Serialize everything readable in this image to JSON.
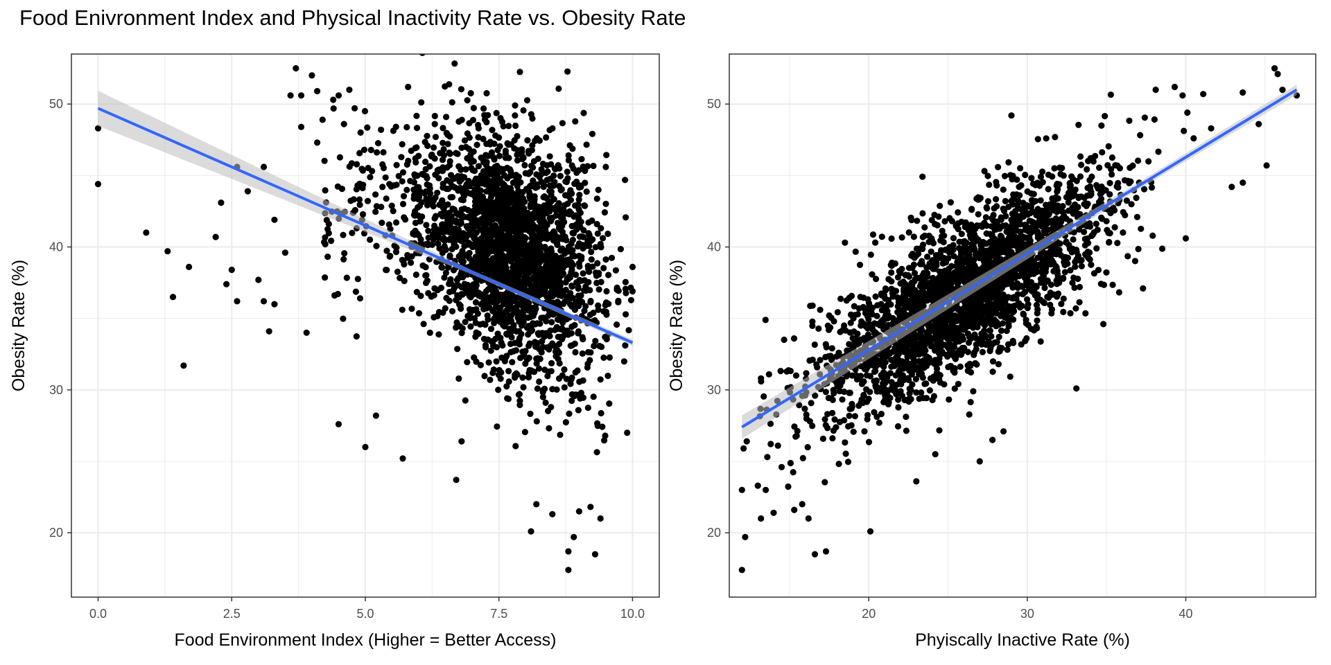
{
  "title": "Food Enivronment Index and Physical Inactivity Rate vs. Obesity Rate",
  "colors": {
    "points": "#000000",
    "trend": "#3366FF",
    "ribbon": "#BEBEBE",
    "grid": "#EBEBEB",
    "panel_border": "#333333",
    "tick_text": "#4D4D4D"
  },
  "chart_data": [
    {
      "type": "scatter",
      "title": "",
      "xlabel": "Food Environment Index (Higher = Better Access)",
      "ylabel": "Obesity Rate (%)",
      "xlim": [
        -0.5,
        10.5
      ],
      "ylim": [
        15.5,
        53.5
      ],
      "xticks": [
        0,
        2.5,
        5,
        7.5,
        10
      ],
      "xtick_labels": [
        "0.0",
        "2.5",
        "5.0",
        "7.5",
        "10.0"
      ],
      "yticks": [
        20,
        30,
        40,
        50
      ],
      "ytick_labels": [
        "20",
        "30",
        "40",
        "50"
      ],
      "grid": true,
      "trend": {
        "method": "linear",
        "x": [
          0,
          10
        ],
        "y": [
          49.7,
          33.3
        ],
        "ci_halfwidth": [
          0.9,
          0.25
        ]
      },
      "highlight_points": [
        [
          0.0,
          48.3
        ],
        [
          0.0,
          44.4
        ],
        [
          0.9,
          41.0
        ],
        [
          1.3,
          39.7
        ],
        [
          1.4,
          36.5
        ],
        [
          1.6,
          31.7
        ],
        [
          1.7,
          38.6
        ],
        [
          2.2,
          40.7
        ],
        [
          2.3,
          43.1
        ],
        [
          2.4,
          37.4
        ],
        [
          2.5,
          38.4
        ],
        [
          2.6,
          36.2
        ],
        [
          2.6,
          45.6
        ],
        [
          2.8,
          43.9
        ],
        [
          3.0,
          37.7
        ],
        [
          3.1,
          45.6
        ],
        [
          3.1,
          36.2
        ],
        [
          3.2,
          34.1
        ],
        [
          3.3,
          41.9
        ],
        [
          3.3,
          36.0
        ],
        [
          3.5,
          39.6
        ],
        [
          3.6,
          50.6
        ],
        [
          3.7,
          52.5
        ],
        [
          3.8,
          50.6
        ],
        [
          3.8,
          48.4
        ],
        [
          3.9,
          34.0
        ],
        [
          4.0,
          52.0
        ],
        [
          4.1,
          47.3
        ],
        [
          4.1,
          50.9
        ],
        [
          4.2,
          48.9
        ],
        [
          4.4,
          50.3
        ],
        [
          4.5,
          50.6
        ],
        [
          4.6,
          48.6
        ],
        [
          4.7,
          51.0
        ],
        [
          4.8,
          49.7
        ],
        [
          4.5,
          27.6
        ],
        [
          5.0,
          26.0
        ],
        [
          5.2,
          28.2
        ],
        [
          5.7,
          25.2
        ],
        [
          5.8,
          51.2
        ],
        [
          6.3,
          48.6
        ],
        [
          6.7,
          23.7
        ],
        [
          6.8,
          26.4
        ],
        [
          7.8,
          49.2
        ],
        [
          8.1,
          20.1
        ],
        [
          8.2,
          22.0
        ],
        [
          8.5,
          21.3
        ],
        [
          8.8,
          18.7
        ],
        [
          8.8,
          17.4
        ],
        [
          8.9,
          19.7
        ],
        [
          9.0,
          21.5
        ],
        [
          9.3,
          18.5
        ],
        [
          9.4,
          21.0
        ],
        [
          9.5,
          45.6
        ],
        [
          9.9,
          27.0
        ],
        [
          10.0,
          38.6
        ],
        [
          10.0,
          36.9
        ]
      ]
    },
    {
      "type": "scatter",
      "title": "",
      "xlabel": "Phyiscally Inactive Rate (%)",
      "ylabel": "Obesity Rate (%)",
      "xlim": [
        11.2,
        48.2
      ],
      "ylim": [
        15.5,
        53.5
      ],
      "xticks": [
        20,
        30,
        40
      ],
      "xtick_labels": [
        "20",
        "30",
        "40"
      ],
      "yticks": [
        20,
        30,
        40,
        50
      ],
      "ytick_labels": [
        "20",
        "30",
        "40",
        "50"
      ],
      "grid": true,
      "trend": {
        "method": "linear",
        "x": [
          12,
          47
        ],
        "y": [
          27.4,
          51.0
        ],
        "ci_halfwidth": [
          0.3,
          0.4
        ]
      },
      "highlight_points": [
        [
          12.0,
          17.4
        ],
        [
          12.2,
          19.7
        ],
        [
          12.0,
          23.0
        ],
        [
          12.1,
          25.9
        ],
        [
          12.3,
          26.4
        ],
        [
          13.0,
          23.3
        ],
        [
          13.2,
          21.0
        ],
        [
          13.5,
          23.0
        ],
        [
          13.6,
          25.3
        ],
        [
          14.0,
          21.4
        ],
        [
          14.5,
          24.6
        ],
        [
          15.3,
          21.6
        ],
        [
          15.8,
          22.0
        ],
        [
          16.2,
          21.0
        ],
        [
          16.6,
          18.5
        ],
        [
          17.3,
          18.7
        ],
        [
          20.1,
          20.1
        ],
        [
          13.2,
          30.8
        ],
        [
          18.5,
          40.3
        ],
        [
          23.0,
          23.6
        ],
        [
          24.2,
          25.5
        ],
        [
          27.0,
          25.0
        ],
        [
          27.8,
          26.5
        ],
        [
          28.5,
          27.1
        ],
        [
          29.0,
          49.2
        ],
        [
          33.1,
          30.1
        ],
        [
          34.8,
          34.6
        ],
        [
          37.3,
          37.1
        ],
        [
          38.1,
          51.0
        ],
        [
          39.3,
          51.2
        ],
        [
          39.8,
          50.6
        ],
        [
          40.1,
          49.4
        ],
        [
          40.5,
          47.6
        ],
        [
          41.1,
          50.7
        ],
        [
          41.6,
          48.3
        ],
        [
          42.9,
          44.2
        ],
        [
          43.6,
          44.5
        ],
        [
          44.6,
          48.6
        ],
        [
          45.1,
          45.7
        ],
        [
          45.6,
          52.5
        ],
        [
          45.8,
          52.1
        ],
        [
          47.0,
          50.6
        ],
        [
          46.1,
          51.0
        ],
        [
          40.0,
          40.6
        ]
      ]
    }
  ]
}
